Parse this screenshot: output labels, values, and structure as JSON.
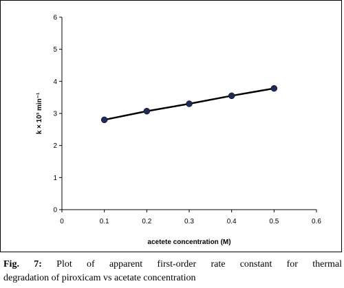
{
  "caption": {
    "fig_label": "Fig. 7:",
    "line1_text": "Plot of apparent first-order rate constant for thermal",
    "line2_text": "degradation of piroxicam vs acetate concentration"
  },
  "chart_data": {
    "type": "line",
    "title": "",
    "xlabel": "acetete concentration (M)",
    "ylabel": "k × 10³ min⁻¹",
    "xlim": [
      0,
      0.6
    ],
    "ylim": [
      0,
      6
    ],
    "x_ticks": [
      "0",
      "0.1",
      "0.2",
      "0.3",
      "0.4",
      "0.5",
      "0.6"
    ],
    "y_ticks": [
      "0",
      "1",
      "2",
      "3",
      "4",
      "5",
      "6"
    ],
    "grid": false,
    "legend": "none",
    "series": [
      {
        "x": [
          0.1,
          0.2,
          0.3,
          0.4,
          0.5
        ],
        "y": [
          2.8,
          3.07,
          3.3,
          3.55,
          3.78
        ],
        "marker": "circle",
        "marker_color": "#1f2a55",
        "line_color": "#000000"
      }
    ]
  }
}
